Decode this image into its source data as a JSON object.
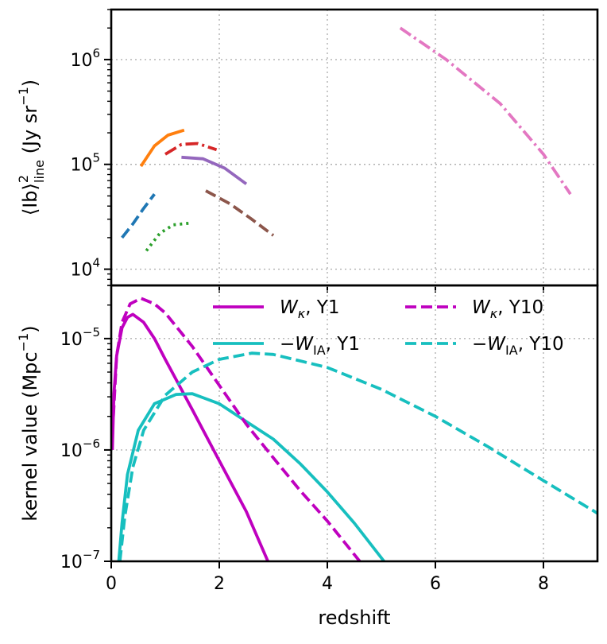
{
  "chart_data": [
    {
      "type": "line",
      "scale": "log-y",
      "ylabel": "⟨Ib⟩²line (Jy sr⁻¹)",
      "ylabel_parts": {
        "main": "⟨Ib⟩",
        "sup": "2",
        "sub": "line",
        "unit": "(Jy sr",
        "unit_sup": "−1",
        "unit_end": ")"
      },
      "xlim": [
        0,
        9
      ],
      "ylim": [
        7000,
        3000000
      ],
      "x_ticks": [
        0,
        2,
        4,
        6,
        8
      ],
      "y_ticks": [
        {
          "value": 10000,
          "base": "10",
          "exp": "4"
        },
        {
          "value": 100000,
          "base": "10",
          "exp": "5"
        },
        {
          "value": 1000000,
          "base": "10",
          "exp": "6"
        }
      ],
      "grid": true,
      "series": [
        {
          "color": "#1f77b4",
          "style": "dashed",
          "points": [
            [
              0.2,
              20000
            ],
            [
              0.4,
              27000
            ],
            [
              0.6,
              38000
            ],
            [
              0.8,
              52000
            ]
          ]
        },
        {
          "color": "#ff7f0e",
          "style": "solid",
          "points": [
            [
              0.55,
              96000
            ],
            [
              0.8,
              150000
            ],
            [
              1.05,
              190000
            ],
            [
              1.35,
              212000
            ]
          ]
        },
        {
          "color": "#2ca02c",
          "style": "dotted",
          "points": [
            [
              0.65,
              15000
            ],
            [
              0.9,
              22000
            ],
            [
              1.15,
              26500
            ],
            [
              1.45,
              27500
            ]
          ]
        },
        {
          "color": "#d62728",
          "style": "dashdot",
          "points": [
            [
              1.0,
              125000
            ],
            [
              1.3,
              155000
            ],
            [
              1.6,
              158000
            ],
            [
              1.95,
              138000
            ]
          ]
        },
        {
          "color": "#9467bd",
          "style": "solid",
          "points": [
            [
              1.3,
              117000
            ],
            [
              1.7,
              113000
            ],
            [
              2.1,
              92000
            ],
            [
              2.5,
              65000
            ]
          ]
        },
        {
          "color": "#8c564b",
          "style": "dashed",
          "points": [
            [
              1.75,
              56000
            ],
            [
              2.2,
              42000
            ],
            [
              2.6,
              30000
            ],
            [
              3.0,
              21000
            ]
          ]
        },
        {
          "color": "#e377c2",
          "style": "dashdot",
          "points": [
            [
              5.35,
              2000000
            ],
            [
              6.2,
              1000000
            ],
            [
              7.2,
              380000
            ],
            [
              8.0,
              125000
            ],
            [
              8.5,
              52000
            ]
          ]
        }
      ]
    },
    {
      "type": "line",
      "scale": "log-y",
      "xlabel": "redshift",
      "ylabel": "kernel value (Mpc⁻¹)",
      "ylabel_parts": {
        "main": "kernel value (Mpc",
        "sup": "−1",
        "end": ")"
      },
      "xlim": [
        0,
        9
      ],
      "ylim": [
        1e-07,
        3e-05
      ],
      "x_ticks": [
        0,
        2,
        4,
        6,
        8
      ],
      "y_ticks": [
        {
          "value": 1e-07,
          "base": "10",
          "exp": "−7"
        },
        {
          "value": 1e-06,
          "base": "10",
          "exp": "−6"
        },
        {
          "value": 1e-05,
          "base": "10",
          "exp": "−5"
        }
      ],
      "grid": true,
      "legend": "top-right",
      "series": [
        {
          "name": "Wκ, Y1",
          "label_parts": {
            "w": "W",
            "sub": "κ",
            "rest": ", Y1"
          },
          "color": "#bf00bf",
          "style": "solid",
          "points": [
            [
              0.02,
              1e-06
            ],
            [
              0.05,
              3.2e-06
            ],
            [
              0.1,
              7e-06
            ],
            [
              0.2,
              1.25e-05
            ],
            [
              0.3,
              1.55e-05
            ],
            [
              0.4,
              1.65e-05
            ],
            [
              0.6,
              1.4e-05
            ],
            [
              0.8,
              1e-05
            ],
            [
              1.0,
              6.5e-06
            ],
            [
              1.5,
              2.3e-06
            ],
            [
              2.0,
              8e-07
            ],
            [
              2.5,
              2.8e-07
            ],
            [
              2.9,
              1e-07
            ]
          ]
        },
        {
          "name": "−WIA, Y1",
          "label_parts": {
            "w": "−W",
            "sub": "IA",
            "rest": ", Y1"
          },
          "color": "#17bfbf",
          "style": "solid",
          "points": [
            [
              0.14,
              1e-07
            ],
            [
              0.2,
              2.2e-07
            ],
            [
              0.3,
              6e-07
            ],
            [
              0.5,
              1.5e-06
            ],
            [
              0.8,
              2.6e-06
            ],
            [
              1.2,
              3.15e-06
            ],
            [
              1.5,
              3.2e-06
            ],
            [
              2.0,
              2.6e-06
            ],
            [
              2.5,
              1.8e-06
            ],
            [
              3.0,
              1.25e-06
            ],
            [
              3.5,
              7.5e-07
            ],
            [
              4.0,
              4.2e-07
            ],
            [
              4.5,
              2.2e-07
            ],
            [
              5.05,
              1e-07
            ]
          ]
        },
        {
          "name": "Wκ, Y10",
          "label_parts": {
            "w": "W",
            "sub": "κ",
            "rest": ", Y10"
          },
          "color": "#bf00bf",
          "style": "dashed",
          "points": [
            [
              0.04,
              2e-06
            ],
            [
              0.1,
              7e-06
            ],
            [
              0.2,
              1.4e-05
            ],
            [
              0.35,
              2.05e-05
            ],
            [
              0.55,
              2.3e-05
            ],
            [
              0.8,
              2.05e-05
            ],
            [
              1.0,
              1.7e-05
            ],
            [
              1.5,
              8.5e-06
            ],
            [
              2.0,
              3.8e-06
            ],
            [
              2.5,
              1.7e-06
            ],
            [
              3.0,
              8.5e-07
            ],
            [
              3.5,
              4.3e-07
            ],
            [
              4.0,
              2.3e-07
            ],
            [
              4.6,
              1e-07
            ]
          ]
        },
        {
          "name": "−WIA, Y10",
          "label_parts": {
            "w": "−W",
            "sub": "IA",
            "rest": ", Y10"
          },
          "color": "#17bfbf",
          "style": "dashed",
          "points": [
            [
              0.16,
              1e-07
            ],
            [
              0.25,
              2.5e-07
            ],
            [
              0.4,
              7e-07
            ],
            [
              0.6,
              1.5e-06
            ],
            [
              1.0,
              3.1e-06
            ],
            [
              1.5,
              5e-06
            ],
            [
              2.0,
              6.5e-06
            ],
            [
              2.6,
              7.4e-06
            ],
            [
              3.0,
              7.2e-06
            ],
            [
              4.0,
              5.5e-06
            ],
            [
              5.0,
              3.5e-06
            ],
            [
              6.0,
              2e-06
            ],
            [
              7.0,
              1.05e-06
            ],
            [
              8.0,
              5.3e-07
            ],
            [
              9.0,
              2.7e-07
            ]
          ]
        }
      ]
    }
  ]
}
